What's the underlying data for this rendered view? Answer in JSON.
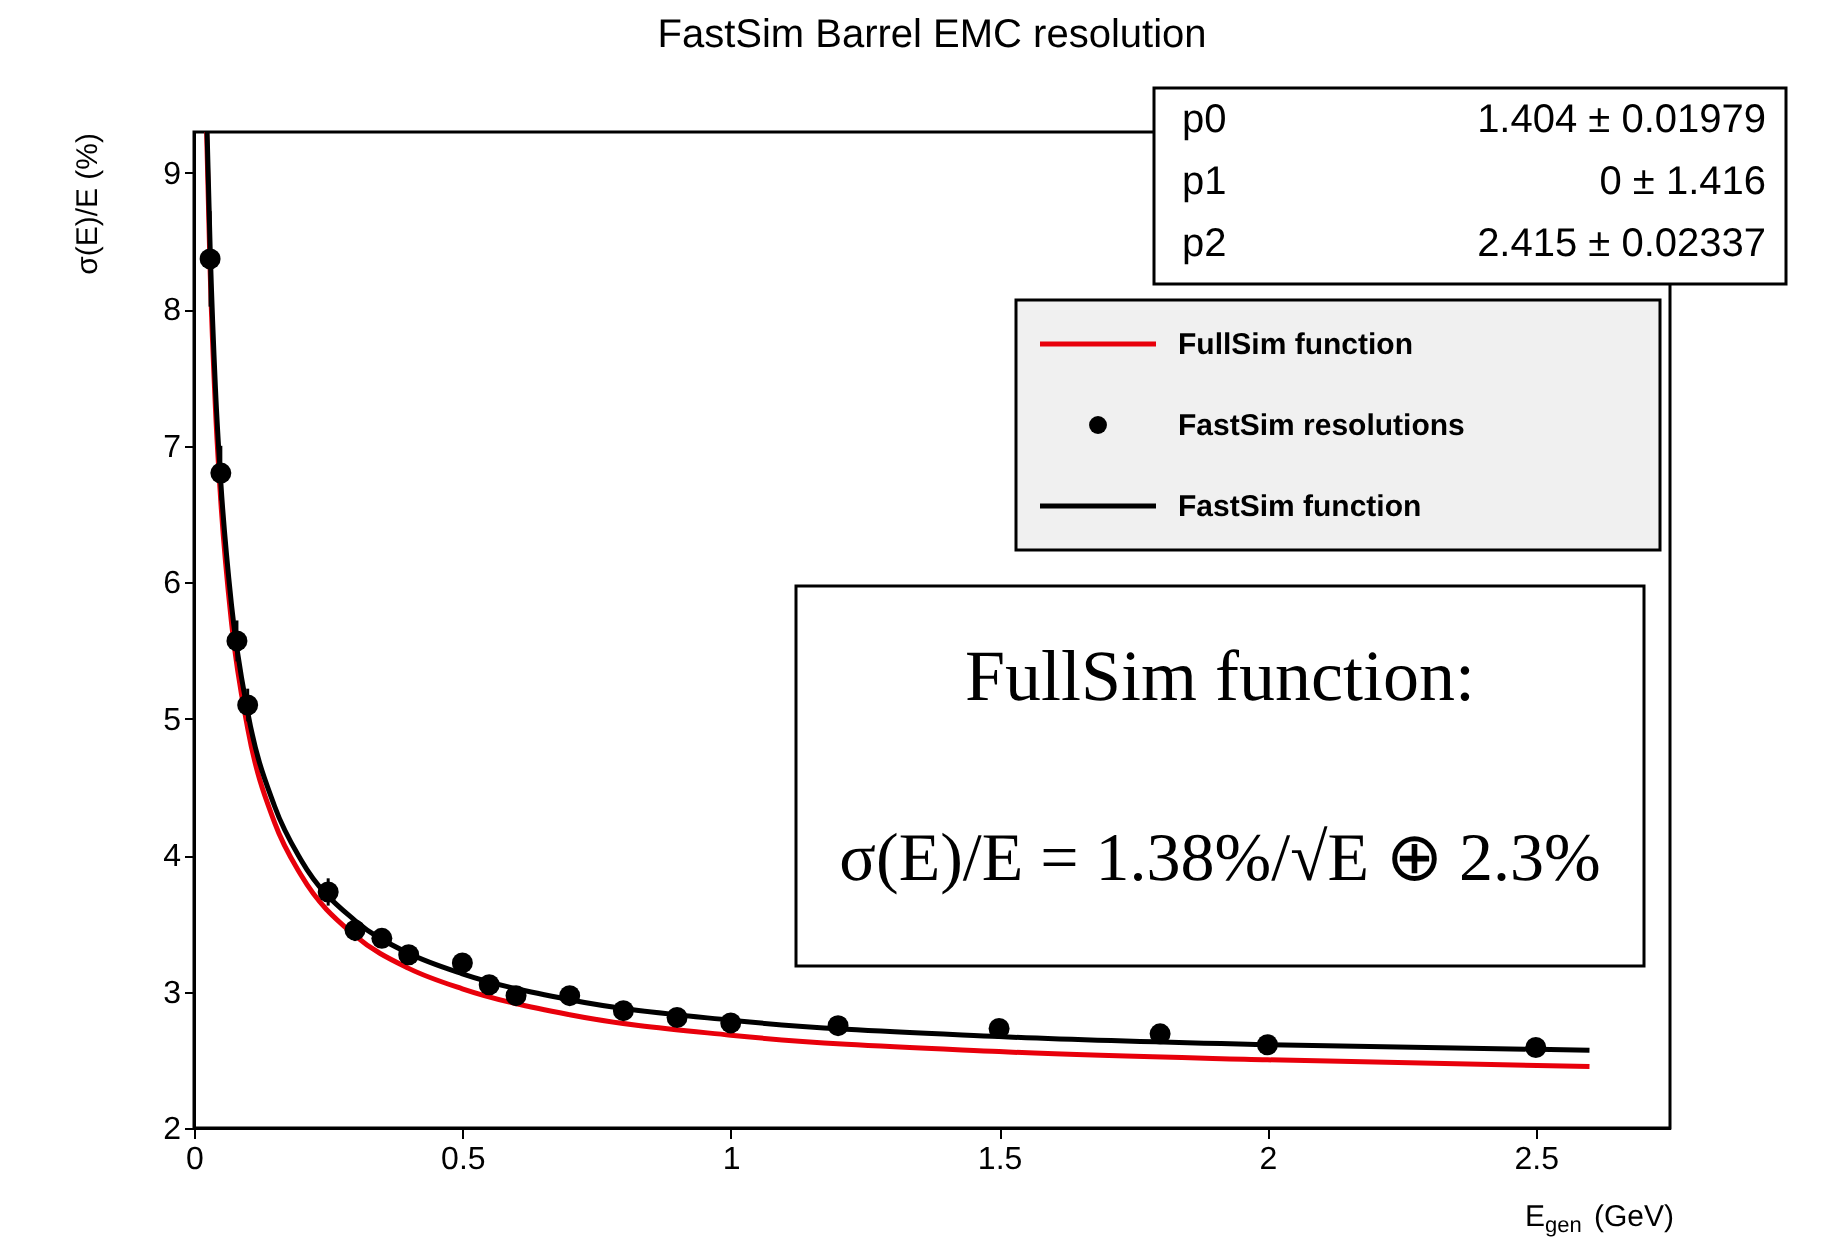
{
  "chart_data": {
    "type": "line",
    "title": "FastSim Barrel EMC resolution",
    "ylabel": "σ(E)/E (%)",
    "xlabel": "E$_{gen}$ (GeV)",
    "xlim": [
      0,
      2.75
    ],
    "ylim": [
      2,
      9.3
    ],
    "xticks": [
      0,
      0.5,
      1,
      1.5,
      2,
      2.5
    ],
    "yticks": [
      2,
      3,
      4,
      5,
      6,
      7,
      8,
      9
    ],
    "grid": false,
    "line_style": "solid",
    "legend": "top right",
    "series": [
      {
        "name": "FullSim function",
        "color": "#e8000b",
        "x": [
          0.0235,
          0.03,
          0.04,
          0.05,
          0.07,
          0.1,
          0.15,
          0.2,
          0.3,
          0.4,
          0.5,
          0.7,
          1.0,
          1.5,
          2.0,
          2.6
        ],
        "values": [
          9.3,
          8.29,
          7.27,
          6.59,
          5.7,
          4.93,
          4.24,
          3.85,
          3.41,
          3.17,
          3.02,
          2.83,
          2.68,
          2.56,
          2.5,
          2.45
        ]
      },
      {
        "name": "FastSim resolutions",
        "type": "scatter",
        "color": "#000000",
        "marker": "circle",
        "x": [
          0.03,
          0.05,
          0.08,
          0.1,
          0.25,
          0.3,
          0.35,
          0.4,
          0.5,
          0.55,
          0.6,
          0.7,
          0.8,
          0.9,
          1.0,
          1.2,
          1.5,
          1.8,
          2.0,
          2.5
        ],
        "values": [
          8.37,
          6.8,
          5.57,
          5.1,
          3.73,
          3.45,
          3.39,
          3.27,
          3.21,
          3.05,
          2.97,
          2.97,
          2.86,
          2.81,
          2.77,
          2.75,
          2.73,
          2.69,
          2.61,
          2.59
        ],
        "errors": [
          0.35,
          0.2,
          0.15,
          0.12,
          0.1,
          0.08,
          null,
          null,
          null,
          0.06,
          null,
          null,
          null,
          null,
          null,
          null,
          null,
          null,
          null,
          null
        ]
      },
      {
        "name": "FastSim function",
        "color": "#000000",
        "x": [
          0.0244,
          0.03,
          0.04,
          0.05,
          0.07,
          0.1,
          0.15,
          0.2,
          0.3,
          0.4,
          0.5,
          0.7,
          1.0,
          1.5,
          2.0,
          2.6
        ],
        "values": [
          9.3,
          8.46,
          7.42,
          6.73,
          5.83,
          5.05,
          4.36,
          3.96,
          3.52,
          3.28,
          3.13,
          2.94,
          2.79,
          2.67,
          2.61,
          2.57
        ]
      }
    ],
    "annotations": [
      "p0",
      "1.404 ± 0.01979",
      "p1",
      "0 ± 1.416",
      "p2",
      "2.415 ± 0.02337",
      "FullSim function:",
      "σ(E)/E = 1.38%/√E ⊕ 2.3%"
    ]
  }
}
